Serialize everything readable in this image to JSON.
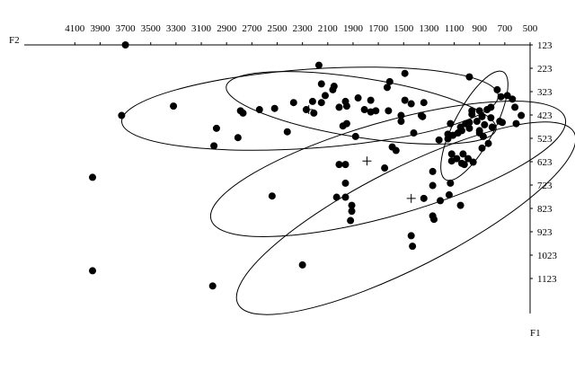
{
  "chart_data": {
    "type": "scatter",
    "x_label": "F2",
    "y_label": "F1",
    "xlim": [
      4500,
      500
    ],
    "ylim": [
      123,
      1273
    ],
    "xticks": [
      4100,
      3900,
      3700,
      3500,
      3300,
      3100,
      2900,
      2700,
      2500,
      2300,
      2100,
      1900,
      1700,
      1500,
      1300,
      1100,
      900,
      700,
      500
    ],
    "yticks": [
      123,
      223,
      323,
      423,
      523,
      623,
      723,
      823,
      923,
      1023,
      1123
    ],
    "grid": false,
    "series": [
      {
        "marker": "dot",
        "color": "#000000",
        "x": [
          3700,
          2170,
          1490,
          980,
          1610,
          1630,
          2150,
          2050,
          2060,
          760,
          2120,
          1860,
          1760,
          2220,
          2150,
          1960,
          1950,
          1340,
          1440,
          1490,
          3320,
          3730,
          2790,
          2770,
          2640,
          2520,
          2370,
          2270,
          2210,
          2010,
          1810,
          1760,
          1720,
          1620,
          1520,
          1360,
          1520,
          1350,
          680,
          730,
          640,
          620,
          960,
          900,
          840,
          810,
          960,
          810,
          880,
          980,
          920,
          860,
          740,
          720,
          980,
          900,
          800,
          570,
          610,
          1010,
          1040,
          1110,
          1150,
          1070,
          1050,
          1130,
          1980,
          1950,
          1880,
          2980,
          2810,
          3000,
          2420,
          1590,
          1560,
          1150,
          1220,
          1420,
          1120,
          1080,
          1030,
          990,
          1020,
          950,
          1040,
          1120,
          880,
          830,
          870,
          900,
          2010,
          1960,
          1650,
          1270,
          1960,
          2540,
          2030,
          1960,
          1270,
          1130,
          1140,
          1210,
          1340,
          1050,
          1910,
          1910,
          1920,
          1270,
          1260,
          1440,
          1430,
          3960,
          3960,
          2300,
          3010
        ],
        "y": [
          123,
          210,
          245,
          260,
          280,
          305,
          290,
          300,
          315,
          315,
          340,
          350,
          360,
          365,
          370,
          365,
          385,
          370,
          375,
          360,
          385,
          425,
          405,
          415,
          400,
          395,
          370,
          400,
          415,
          390,
          400,
          410,
          405,
          405,
          425,
          425,
          450,
          430,
          340,
          345,
          355,
          390,
          405,
          405,
          400,
          390,
          420,
          435,
          430,
          455,
          450,
          465,
          450,
          455,
          480,
          490,
          475,
          425,
          460,
          460,
          490,
          510,
          505,
          500,
          475,
          460,
          470,
          460,
          515,
          480,
          520,
          555,
          495,
          560,
          575,
          525,
          530,
          500,
          590,
          610,
          590,
          610,
          635,
          625,
          630,
          620,
          565,
          545,
          515,
          500,
          635,
          635,
          650,
          665,
          715,
          770,
          775,
          775,
          725,
          715,
          765,
          790,
          780,
          810,
          810,
          835,
          875,
          855,
          870,
          940,
          985,
          690,
          1090,
          1065,
          1155
        ]
      },
      {
        "marker": "cross",
        "color": "#000000",
        "x": [
          2250,
          1790,
          1440
        ],
        "y": [
          400,
          620,
          780
        ]
      }
    ]
  }
}
